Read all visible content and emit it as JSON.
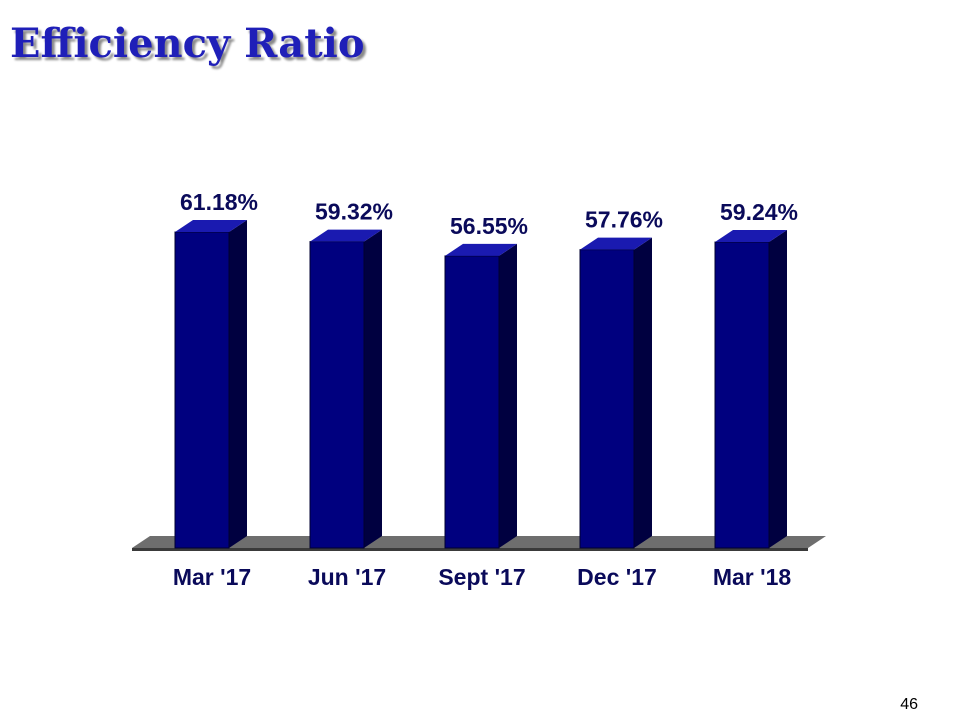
{
  "slide": {
    "title": "Efficiency Ratio",
    "page_number": "46"
  },
  "colors": {
    "title": "#1f1fb8",
    "bar_front": "#00007f",
    "bar_side": "#000040",
    "bar_top": "#1a1ab0",
    "floor": "#6e6e6e",
    "label": "#0a0a5a"
  },
  "chart_data": {
    "type": "bar",
    "title": "Efficiency Ratio",
    "categories": [
      "Mar '17",
      "Jun '17",
      "Sept '17",
      "Dec '17",
      "Mar '18"
    ],
    "values": [
      61.18,
      59.32,
      56.55,
      57.76,
      59.24
    ],
    "data_labels": [
      "61.18%",
      "59.32%",
      "56.55%",
      "57.76%",
      "59.24%"
    ],
    "unit": "%",
    "xlabel": "",
    "ylabel": "",
    "ylim": [
      0,
      61.18
    ],
    "grid": false,
    "legend": "none",
    "style": "3d-column"
  }
}
